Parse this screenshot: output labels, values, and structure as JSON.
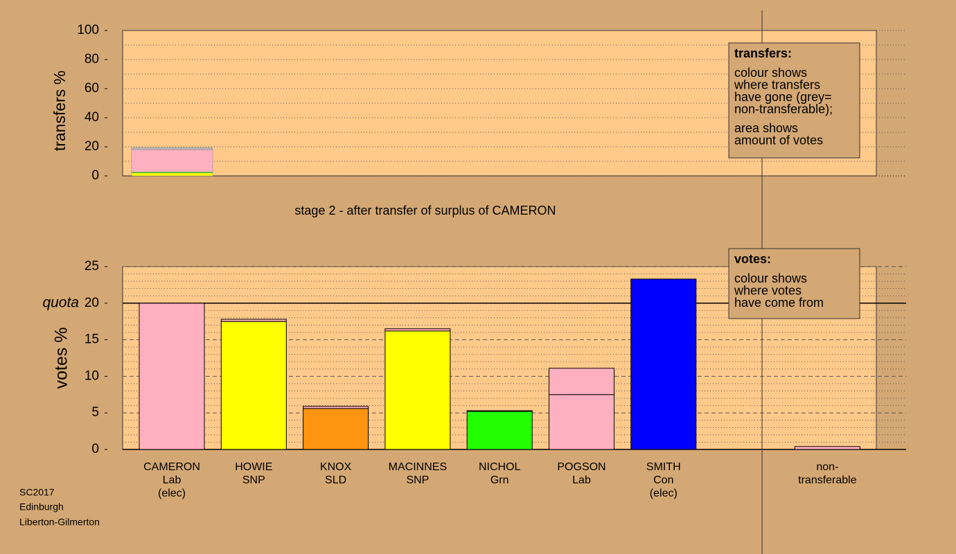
{
  "chart_data": [
    {
      "type": "stacked-bar",
      "ylabel": "transfers %",
      "ylim": [
        0,
        100
      ],
      "yticks": [
        0,
        20,
        40,
        60,
        80,
        100
      ],
      "yminor": [
        10,
        30,
        50,
        70,
        90
      ],
      "segments": [
        {
          "color": "#ffff00",
          "value": 2
        },
        {
          "color": "#22ff00",
          "value": 0.7
        },
        {
          "color": "#ffb0c0",
          "value": 15.3
        },
        {
          "color": "#b4b4b4",
          "value": 1.5
        }
      ],
      "legend": {
        "title": "transfers:",
        "paragraphs": [
          [
            "colour shows",
            "where transfers",
            "have gone (grey=",
            "non-transferable);"
          ],
          [
            "area shows",
            "amount of votes"
          ]
        ]
      }
    },
    {
      "type": "stacked-bar",
      "title": "stage 2 - after transfer of surplus of CAMERON",
      "ylabel": "votes %",
      "ylim": [
        0,
        25
      ],
      "yticks": [
        0,
        5,
        10,
        15,
        20,
        25
      ],
      "yminor": [
        1,
        2,
        3,
        4,
        6,
        7,
        8,
        9,
        11,
        12,
        13,
        14,
        16,
        17,
        18,
        19,
        21,
        22,
        23,
        24
      ],
      "quota": 20,
      "quota_label": "quota",
      "categories": [
        [
          "CAMERON",
          "Lab",
          "(elec)"
        ],
        [
          "HOWIE",
          "SNP"
        ],
        [
          "KNOX",
          "SLD"
        ],
        [
          "MACINNES",
          "SNP"
        ],
        [
          "NICHOL",
          "Grn"
        ],
        [
          "POGSON",
          "Lab"
        ],
        [
          "SMITH",
          "Con",
          "(elec)"
        ],
        null,
        [
          "non-",
          "transferable"
        ]
      ],
      "series": [
        {
          "colors": [
            "#ffb0c0",
            "#ffff00",
            "#ff9410",
            "#ffff00",
            "#22ff00",
            "#ffb0c0",
            "#0000ff",
            null,
            null
          ],
          "values": [
            20,
            17.5,
            5.6,
            16.2,
            5.2,
            7.5,
            23.3,
            null,
            null
          ]
        },
        {
          "color": "#ffb0c0",
          "values": [
            null,
            0.3,
            0.3,
            0.3,
            0.1,
            3.6,
            null,
            null,
            0.4
          ]
        }
      ],
      "legend": {
        "title": "votes:",
        "paragraphs": [
          [
            "colour shows",
            "where votes",
            "have come from"
          ]
        ]
      }
    }
  ],
  "footer": [
    "SC2017",
    "Edinburgh",
    "Liberton-Gilmerton"
  ]
}
